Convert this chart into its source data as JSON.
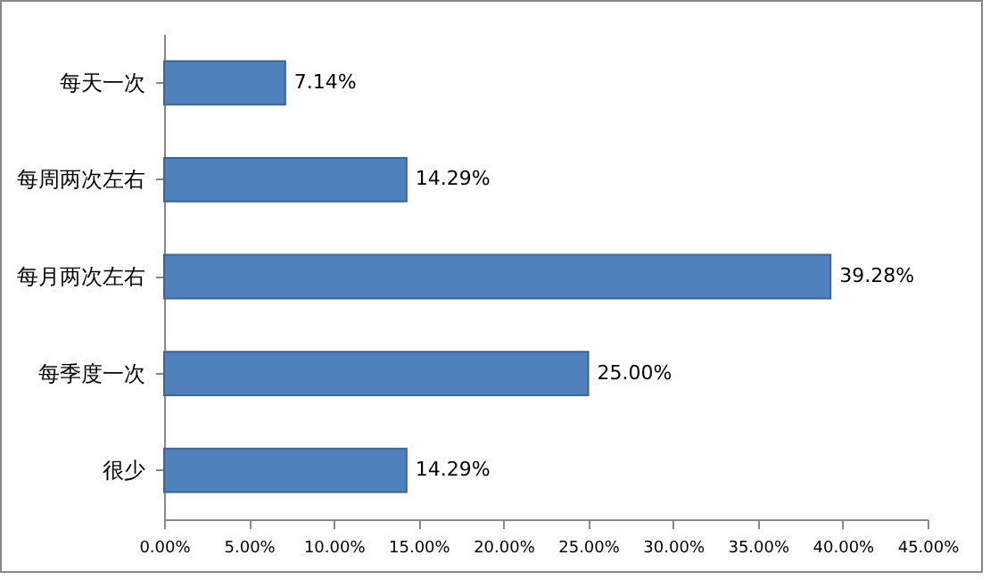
{
  "chart_data": {
    "type": "bar",
    "orientation": "horizontal",
    "categories": [
      "每天一次",
      "每周两次左右",
      "每月两次左右",
      "每季度一次",
      "很少"
    ],
    "values": [
      7.14,
      14.29,
      39.28,
      25.0,
      14.29
    ],
    "value_labels": [
      "7.14%",
      "14.29%",
      "39.28%",
      "25.00%",
      "14.29%"
    ],
    "color": "#4f81bd",
    "grid": false,
    "xlim": [
      0,
      45
    ],
    "xticks": [
      {
        "value": 0,
        "label": "0.00%"
      },
      {
        "value": 5,
        "label": "5.00%"
      },
      {
        "value": 10,
        "label": "10.00%"
      },
      {
        "value": 15,
        "label": "15.00%"
      },
      {
        "value": 20,
        "label": "20.00%"
      },
      {
        "value": 25,
        "label": "25.00%"
      },
      {
        "value": 30,
        "label": "30.00%"
      },
      {
        "value": 35,
        "label": "35.00%"
      },
      {
        "value": 40,
        "label": "40.00%"
      },
      {
        "value": 45,
        "label": "45.00%"
      }
    ]
  }
}
